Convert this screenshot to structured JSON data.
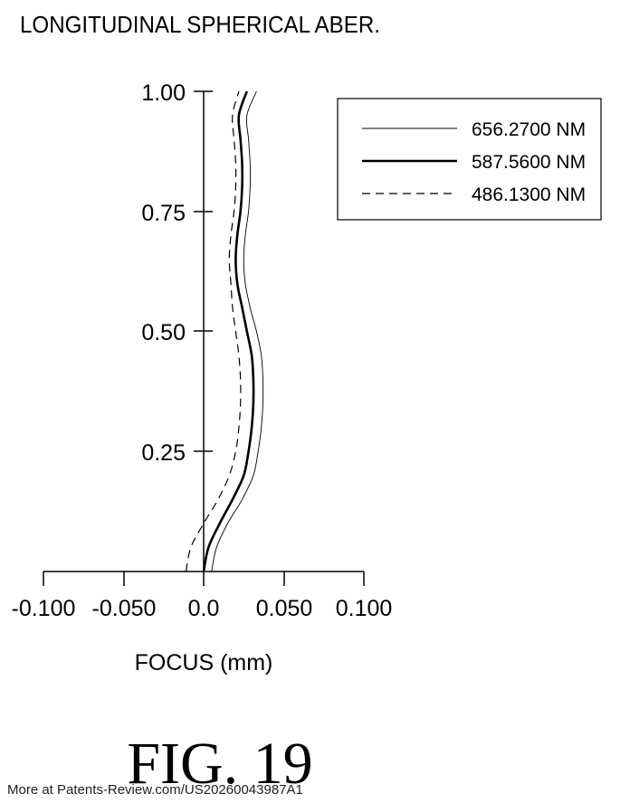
{
  "chart_data": {
    "type": "line",
    "title": "LONGITUDINAL SPHERICAL ABER.",
    "xlabel": "FOCUS (mm)",
    "ylabel": "",
    "xlim": [
      -0.1,
      0.1
    ],
    "ylim": [
      0,
      1.0
    ],
    "x_ticks": [
      "-0.100",
      "-0.050",
      "0.0",
      "0.050",
      "0.100"
    ],
    "y_ticks": [
      "1.00",
      "0.75",
      "0.50",
      "0.25"
    ],
    "legend_position": "top-right",
    "series": [
      {
        "name": "656.2700 NM",
        "style": "thin",
        "points": [
          [
            0.005,
            0.0
          ],
          [
            0.008,
            0.05
          ],
          [
            0.015,
            0.1
          ],
          [
            0.024,
            0.15
          ],
          [
            0.031,
            0.2
          ],
          [
            0.034,
            0.25
          ],
          [
            0.036,
            0.3
          ],
          [
            0.037,
            0.35
          ],
          [
            0.037,
            0.4
          ],
          [
            0.036,
            0.45
          ],
          [
            0.033,
            0.5
          ],
          [
            0.029,
            0.55
          ],
          [
            0.026,
            0.6
          ],
          [
            0.025,
            0.65
          ],
          [
            0.026,
            0.7
          ],
          [
            0.028,
            0.75
          ],
          [
            0.029,
            0.8
          ],
          [
            0.029,
            0.85
          ],
          [
            0.028,
            0.9
          ],
          [
            0.027,
            0.95
          ],
          [
            0.033,
            1.0
          ]
        ]
      },
      {
        "name": "587.5600 NM",
        "style": "thick",
        "points": [
          [
            0.0,
            0.0
          ],
          [
            0.003,
            0.05
          ],
          [
            0.01,
            0.1
          ],
          [
            0.018,
            0.15
          ],
          [
            0.025,
            0.2
          ],
          [
            0.028,
            0.25
          ],
          [
            0.03,
            0.3
          ],
          [
            0.031,
            0.35
          ],
          [
            0.031,
            0.4
          ],
          [
            0.03,
            0.45
          ],
          [
            0.027,
            0.5
          ],
          [
            0.024,
            0.55
          ],
          [
            0.021,
            0.6
          ],
          [
            0.02,
            0.65
          ],
          [
            0.021,
            0.7
          ],
          [
            0.023,
            0.75
          ],
          [
            0.024,
            0.8
          ],
          [
            0.024,
            0.85
          ],
          [
            0.023,
            0.9
          ],
          [
            0.022,
            0.95
          ],
          [
            0.027,
            1.0
          ]
        ]
      },
      {
        "name": "486.1300 NM",
        "style": "dashed",
        "points": [
          [
            -0.011,
            0.0
          ],
          [
            -0.008,
            0.05
          ],
          [
            0.0,
            0.1
          ],
          [
            0.009,
            0.15
          ],
          [
            0.016,
            0.2
          ],
          [
            0.02,
            0.25
          ],
          [
            0.022,
            0.3
          ],
          [
            0.023,
            0.35
          ],
          [
            0.023,
            0.4
          ],
          [
            0.022,
            0.45
          ],
          [
            0.02,
            0.5
          ],
          [
            0.018,
            0.55
          ],
          [
            0.017,
            0.6
          ],
          [
            0.016,
            0.65
          ],
          [
            0.017,
            0.7
          ],
          [
            0.019,
            0.75
          ],
          [
            0.02,
            0.8
          ],
          [
            0.02,
            0.85
          ],
          [
            0.019,
            0.9
          ],
          [
            0.018,
            0.95
          ],
          [
            0.022,
            1.0
          ]
        ]
      }
    ]
  },
  "figure_label": "FIG. 19",
  "footer_text": "More at Patents-Review.com/US20260043987A1"
}
